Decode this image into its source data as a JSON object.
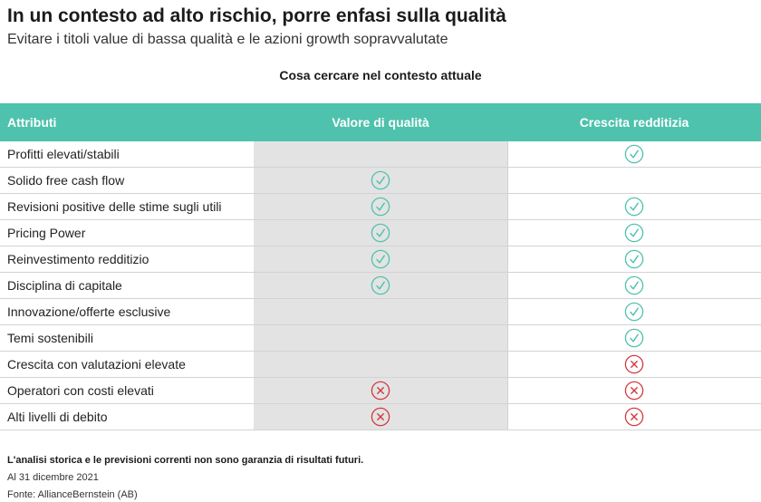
{
  "title": "In un contesto ad alto rischio, porre enfasi sulla qualità",
  "subtitle": "Evitare i titoli value di bassa qualità e le azioni growth sopravvalutate",
  "section_title": "Cosa cercare nel contesto attuale",
  "colors": {
    "header_bg": "#4ec2ac",
    "check": "#4ec2ac",
    "cross": "#d0393e",
    "shaded_col": "#e3e3e3"
  },
  "table": {
    "headers": [
      "Attributi",
      "Valore di qualità",
      "Crescita redditizia"
    ],
    "rows": [
      {
        "label": "Profitti elevati/stabili",
        "quality": "",
        "growth": "check"
      },
      {
        "label": "Solido free cash flow",
        "quality": "check",
        "growth": ""
      },
      {
        "label": "Revisioni positive delle stime sugli utili",
        "quality": "check",
        "growth": "check"
      },
      {
        "label": "Pricing Power",
        "quality": "check",
        "growth": "check"
      },
      {
        "label": "Reinvestimento redditizio",
        "quality": "check",
        "growth": "check"
      },
      {
        "label": "Disciplina di capitale",
        "quality": "check",
        "growth": "check"
      },
      {
        "label": "Innovazione/offerte esclusive",
        "quality": "",
        "growth": "check"
      },
      {
        "label": "Temi sostenibili",
        "quality": "",
        "growth": "check"
      },
      {
        "label": "Crescita con valutazioni elevate",
        "quality": "",
        "growth": "cross"
      },
      {
        "label": "Operatori con costi elevati",
        "quality": "cross",
        "growth": "cross"
      },
      {
        "label": "Alti livelli di debito",
        "quality": "cross",
        "growth": "cross"
      }
    ]
  },
  "footnotes": {
    "disclaimer": "L'analisi storica e le previsioni correnti non sono garanzia di risultati futuri.",
    "date": "Al 31 dicembre 2021",
    "source": "Fonte: AllianceBernstein (AB)"
  }
}
